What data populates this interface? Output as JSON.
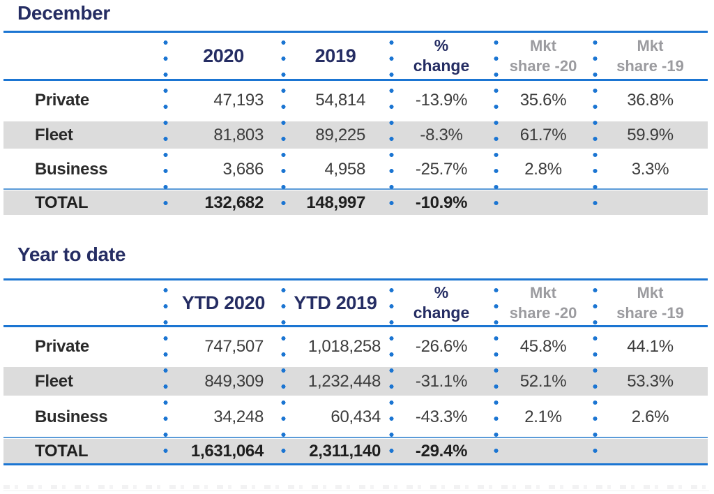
{
  "colors": {
    "navy": "#252d63",
    "bright_blue": "#1b75d2",
    "thin_rule_blue": "#5b9bd8",
    "stripe_gray": "#dcdcdc",
    "muted_header_gray": "#9b9b9f",
    "value_text": "#3c3c3c"
  },
  "tables": [
    {
      "title": "December",
      "headers": {
        "year1": "2020",
        "year2": "2019",
        "pct": {
          "line1": "%",
          "line2": "change"
        },
        "mkt20": {
          "line1": "Mkt",
          "line2": "share -20"
        },
        "mkt19": {
          "line1": "Mkt",
          "line2": "share -19"
        }
      },
      "rows": [
        {
          "label": "Private",
          "y2020": "47,193",
          "y2019": "54,814",
          "change": "-13.9%",
          "mkt20": "35.6%",
          "mkt19": "36.8%"
        },
        {
          "label": "Fleet",
          "y2020": "81,803",
          "y2019": "89,225",
          "change": "-8.3%",
          "mkt20": "61.7%",
          "mkt19": "59.9%"
        },
        {
          "label": "Business",
          "y2020": "3,686",
          "y2019": "4,958",
          "change": "-25.7%",
          "mkt20": "2.8%",
          "mkt19": "3.3%"
        }
      ],
      "total": {
        "label": "TOTAL",
        "y2020": "132,682",
        "y2019": "148,997",
        "change": "-10.9%",
        "mkt20": "",
        "mkt19": ""
      }
    },
    {
      "title": "Year to date",
      "headers": {
        "year1": "YTD 2020",
        "year2": "YTD 2019",
        "pct": {
          "line1": "%",
          "line2": "change"
        },
        "mkt20": {
          "line1": "Mkt",
          "line2": "share -20"
        },
        "mkt19": {
          "line1": "Mkt",
          "line2": "share -19"
        }
      },
      "rows": [
        {
          "label": "Private",
          "y2020": "747,507",
          "y2019": "1,018,258",
          "change": "-26.6%",
          "mkt20": "45.8%",
          "mkt19": "44.1%"
        },
        {
          "label": "Fleet",
          "y2020": "849,309",
          "y2019": "1,232,448",
          "change": "-31.1%",
          "mkt20": "52.1%",
          "mkt19": "53.3%"
        },
        {
          "label": "Business",
          "y2020": "34,248",
          "y2019": "60,434",
          "change": "-43.3%",
          "mkt20": "2.1%",
          "mkt19": "2.6%"
        }
      ],
      "total": {
        "label": "TOTAL",
        "y2020": "1,631,064",
        "y2019": "2,311,140",
        "change": "-29.4%",
        "mkt20": "",
        "mkt19": ""
      }
    }
  ],
  "chart_data": [
    {
      "type": "table",
      "title": "December",
      "columns": [
        "",
        "2020",
        "2019",
        "% change",
        "Mkt share -20",
        "Mkt share -19"
      ],
      "rows": [
        [
          "Private",
          47193,
          54814,
          -13.9,
          35.6,
          36.8
        ],
        [
          "Fleet",
          81803,
          89225,
          -8.3,
          61.7,
          59.9
        ],
        [
          "Business",
          3686,
          4958,
          -25.7,
          2.8,
          3.3
        ],
        [
          "TOTAL",
          132682,
          148997,
          -10.9,
          null,
          null
        ]
      ]
    },
    {
      "type": "table",
      "title": "Year to date",
      "columns": [
        "",
        "YTD 2020",
        "YTD 2019",
        "% change",
        "Mkt share -20",
        "Mkt share -19"
      ],
      "rows": [
        [
          "Private",
          747507,
          1018258,
          -26.6,
          45.8,
          44.1
        ],
        [
          "Fleet",
          849309,
          1232448,
          -31.1,
          52.1,
          53.3
        ],
        [
          "Business",
          34248,
          60434,
          -43.3,
          2.1,
          2.6
        ],
        [
          "TOTAL",
          1631064,
          2311140,
          -29.4,
          null,
          null
        ]
      ]
    }
  ]
}
